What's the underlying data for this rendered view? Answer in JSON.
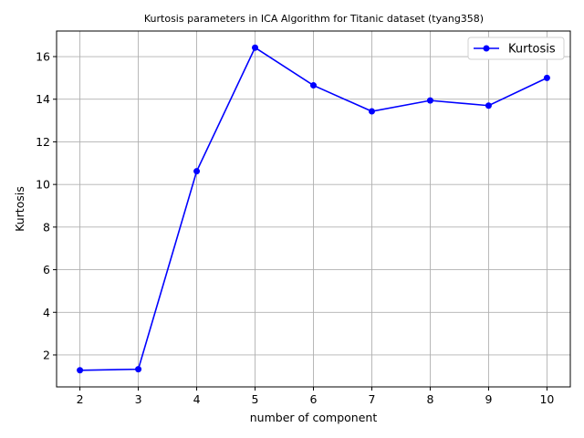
{
  "chart_data": {
    "type": "line",
    "title": "Kurtosis parameters in ICA Algorithm for Titanic dataset (tyang358)",
    "xlabel": "number of component",
    "ylabel": "Kurtosis",
    "x": [
      2,
      3,
      4,
      5,
      6,
      7,
      8,
      9,
      10
    ],
    "xlim": [
      1.6,
      10.4
    ],
    "ylim": [
      0.5,
      17.2
    ],
    "xticks": [
      2,
      3,
      4,
      5,
      6,
      7,
      8,
      9,
      10
    ],
    "yticks": [
      2,
      4,
      6,
      8,
      10,
      12,
      14,
      16
    ],
    "grid": true,
    "legend_position": "top-right",
    "series": [
      {
        "name": "Kurtosis",
        "color": "#0000ff",
        "marker": "circle",
        "values": [
          1.28,
          1.33,
          10.62,
          16.42,
          14.65,
          13.43,
          13.94,
          13.7,
          15.0
        ]
      }
    ]
  }
}
